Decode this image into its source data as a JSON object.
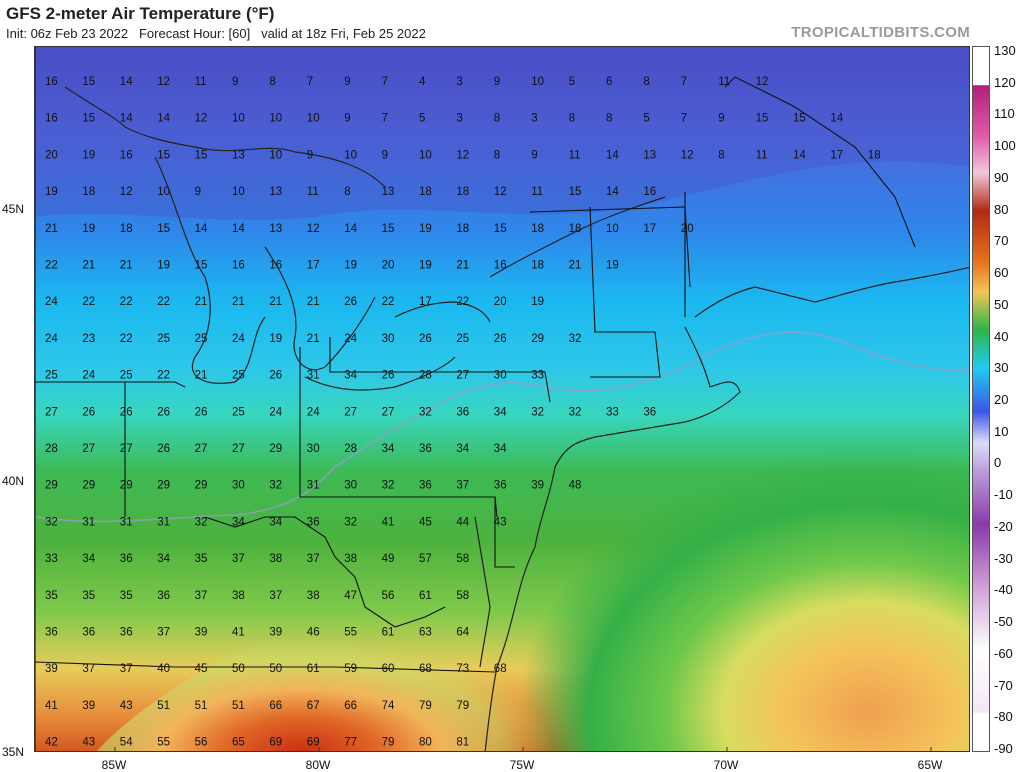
{
  "header": {
    "title": "GFS 2-meter Air Temperature (°F)",
    "subtitle": "Init: 06z Feb 23 2022   Forecast Hour: [60]   valid at 18z Fri, Feb 25 2022",
    "source": "TROPICALTIDBITS.COM"
  },
  "colorbar": {
    "labels": [
      "130",
      "120",
      "110",
      "100",
      "90",
      "80",
      "70",
      "60",
      "50",
      "40",
      "30",
      "20",
      "10",
      "0",
      "-10",
      "-20",
      "-30",
      "-40",
      "-50",
      "-60",
      "-70",
      "-80",
      "-90"
    ]
  },
  "axes": {
    "lat_labels": [
      "45N",
      "40N",
      "35N"
    ],
    "lon_labels": [
      "85W",
      "80W",
      "75W",
      "70W",
      "65W"
    ]
  },
  "temperature_rows": [
    [
      "16",
      "15",
      "14",
      "12",
      "11",
      "9",
      "8",
      "7",
      "9",
      "7",
      "4",
      "3",
      "9",
      "10",
      "5",
      "6",
      "8",
      "7",
      "11",
      "12"
    ],
    [
      "16",
      "15",
      "14",
      "14",
      "12",
      "10",
      "10",
      "10",
      "9",
      "7",
      "5",
      "3",
      "8",
      "3",
      "8",
      "8",
      "5",
      "7",
      "9",
      "15",
      "15",
      "14"
    ],
    [
      "20",
      "19",
      "16",
      "15",
      "15",
      "13",
      "10",
      "9",
      "10",
      "9",
      "10",
      "12",
      "8",
      "9",
      "11",
      "14",
      "13",
      "12",
      "8",
      "11",
      "14",
      "17",
      "18"
    ],
    [
      "19",
      "18",
      "12",
      "10",
      "9",
      "10",
      "13",
      "11",
      "8",
      "13",
      "18",
      "18",
      "12",
      "11",
      "15",
      "14",
      "16"
    ],
    [
      "21",
      "19",
      "18",
      "15",
      "14",
      "14",
      "13",
      "12",
      "14",
      "15",
      "19",
      "18",
      "15",
      "18",
      "18",
      "10",
      "17",
      "20"
    ],
    [
      "22",
      "21",
      "21",
      "19",
      "15",
      "16",
      "16",
      "17",
      "19",
      "20",
      "19",
      "21",
      "16",
      "18",
      "21",
      "19"
    ],
    [
      "24",
      "22",
      "22",
      "22",
      "21",
      "21",
      "21",
      "21",
      "26",
      "22",
      "17",
      "22",
      "20",
      "19"
    ],
    [
      "24",
      "23",
      "22",
      "25",
      "25",
      "24",
      "19",
      "21",
      "24",
      "30",
      "26",
      "25",
      "26",
      "29",
      "32"
    ],
    [
      "25",
      "24",
      "25",
      "22",
      "21",
      "25",
      "26",
      "31",
      "34",
      "26",
      "28",
      "27",
      "30",
      "33"
    ],
    [
      "27",
      "26",
      "26",
      "26",
      "26",
      "25",
      "24",
      "24",
      "27",
      "27",
      "32",
      "36",
      "34",
      "32",
      "32",
      "33",
      "36"
    ],
    [
      "28",
      "27",
      "27",
      "26",
      "27",
      "27",
      "29",
      "30",
      "28",
      "34",
      "36",
      "34",
      "34"
    ],
    [
      "29",
      "29",
      "29",
      "29",
      "29",
      "30",
      "32",
      "31",
      "30",
      "32",
      "36",
      "37",
      "36",
      "39",
      "48"
    ],
    [
      "32",
      "31",
      "31",
      "31",
      "32",
      "34",
      "34",
      "36",
      "32",
      "41",
      "45",
      "44",
      "43"
    ],
    [
      "33",
      "34",
      "36",
      "34",
      "35",
      "37",
      "38",
      "37",
      "38",
      "49",
      "57",
      "58"
    ],
    [
      "35",
      "35",
      "35",
      "36",
      "37",
      "38",
      "37",
      "38",
      "47",
      "56",
      "61",
      "58"
    ],
    [
      "36",
      "36",
      "36",
      "37",
      "39",
      "41",
      "39",
      "46",
      "55",
      "61",
      "63",
      "64"
    ],
    [
      "39",
      "37",
      "37",
      "40",
      "45",
      "50",
      "50",
      "61",
      "59",
      "60",
      "68",
      "73",
      "68"
    ],
    [
      "41",
      "39",
      "43",
      "51",
      "51",
      "51",
      "66",
      "67",
      "66",
      "74",
      "79",
      "79"
    ],
    [
      "42",
      "43",
      "54",
      "55",
      "56",
      "65",
      "69",
      "69",
      "77",
      "79",
      "80",
      "81"
    ]
  ]
}
